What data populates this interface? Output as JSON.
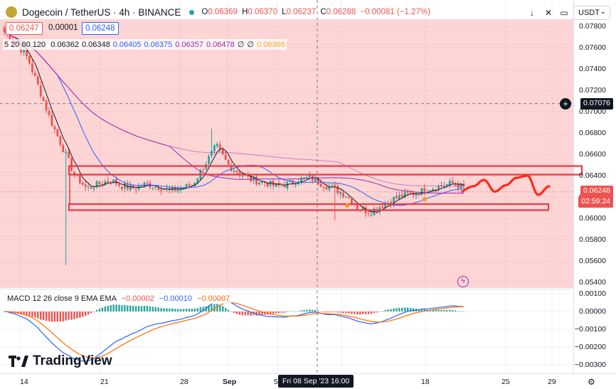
{
  "header": {
    "symbol_title": "Dogecoin / TetherUS · 4h · BINANCE",
    "ohlc": {
      "o_label": "O",
      "o": "0.06369",
      "h_label": "H",
      "h": "0.06370",
      "l_label": "L",
      "l": "0.06237",
      "c_label": "C",
      "c": "0.06288",
      "change": "−0.00081 (−1.27%)"
    },
    "bid": "0.06247",
    "spread": "0.00001",
    "ask": "0.06248",
    "currency": "USDT"
  },
  "ma_legend": {
    "label": "5 20 60 120",
    "values": [
      {
        "v": "0.06362",
        "color": "#131722"
      },
      {
        "v": "0.06348",
        "color": "#131722"
      },
      {
        "v": "0.06405",
        "color": "#2962ff"
      },
      {
        "v": "0.06375",
        "color": "#2962ff"
      },
      {
        "v": "0.06357",
        "color": "#9c27b0"
      },
      {
        "v": "0.06478",
        "color": "#9c27b0"
      },
      {
        "v": "∅",
        "color": "#131722"
      },
      {
        "v": "∅",
        "color": "#131722"
      },
      {
        "v": "0.06366",
        "color": "#f9a825"
      }
    ]
  },
  "macd_legend": {
    "label": "MACD 12 26 close 9 EMA EMA",
    "hist": "−0.00002",
    "macd": "−0.00010",
    "signal": "−0.00007"
  },
  "price_axis": [
    "0.07800",
    "0.07600",
    "0.07400",
    "0.07200",
    "0.07000",
    "0.06800",
    "0.06600",
    "0.06400",
    "0.06200",
    "0.06000",
    "0.05800",
    "0.05600",
    "0.05400"
  ],
  "macd_axis": [
    "0.00100",
    "0.00000",
    "−0.00100",
    "−0.00200",
    "−0.00300"
  ],
  "x_axis": [
    {
      "label": "14"
    },
    {
      "label": "21"
    },
    {
      "label": "28"
    },
    {
      "label": "Sep"
    },
    {
      "label": "5"
    },
    {
      "label": "18"
    },
    {
      "label": "25"
    },
    {
      "label": "29"
    }
  ],
  "crosshair": {
    "price": "0.07076",
    "time": "Fri 08 Sep '23   16:00"
  },
  "last_price": {
    "value": "0.06248",
    "countdown": "02:59:24"
  },
  "brand": "TradingView",
  "colors": {
    "up": "#26a69a",
    "down": "#ef5350",
    "bg_zone": "#fdd5d5",
    "box": "#f23645",
    "forecast": "#ff2a1a"
  },
  "chart_data": {
    "type": "candlestick",
    "timeframe": "4h",
    "price_range": [
      0.0535,
      0.079
    ],
    "macd_range": [
      -0.0033,
      0.0012
    ],
    "approx_close_path": [
      0.0775,
      0.0765,
      0.075,
      0.072,
      0.069,
      0.0665,
      0.064,
      0.0628,
      0.0632,
      0.0636,
      0.063,
      0.0628,
      0.0632,
      0.063,
      0.0626,
      0.0628,
      0.0632,
      0.065,
      0.0668,
      0.065,
      0.0642,
      0.0636,
      0.0634,
      0.063,
      0.0632,
      0.0636,
      0.0638,
      0.0632,
      0.0628,
      0.0622,
      0.061,
      0.0606,
      0.0612,
      0.0618,
      0.0622,
      0.0624,
      0.0628,
      0.063,
      0.0633,
      0.0629
    ],
    "range_box": {
      "upper": [
        0.0647,
        0.0643
      ],
      "lower": [
        0.0612,
        0.0609
      ]
    },
    "forecast_path": [
      0.0625,
      0.063,
      0.0636,
      0.0625,
      0.0631,
      0.0638,
      0.064,
      0.0622,
      0.063
    ]
  }
}
